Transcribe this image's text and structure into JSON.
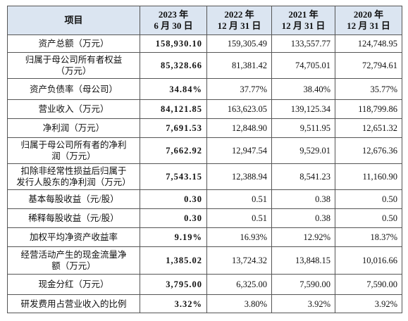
{
  "table": {
    "header": [
      [
        "项目"
      ],
      [
        "2023 年",
        "6 月 30 日"
      ],
      [
        "2022 年",
        "12 月 31 日"
      ],
      [
        "2021 年",
        "12 月 31 日"
      ],
      [
        "2020 年",
        "12 月 31 日"
      ]
    ],
    "rows": [
      [
        [
          "资产总额（万元）"
        ],
        "158,930.10",
        "159,305.49",
        "133,557.77",
        "124,748.95"
      ],
      [
        [
          "归属于母公司所有者权益",
          "（万元）"
        ],
        "85,328.66",
        "81,381.42",
        "74,705.01",
        "72,794.61"
      ],
      [
        [
          "资产负债率（母公司）"
        ],
        "34.84%",
        "37.77%",
        "38.40%",
        "35.77%"
      ],
      [
        [
          "营业收入（万元）"
        ],
        "84,121.85",
        "163,623.05",
        "139,125.34",
        "118,799.86"
      ],
      [
        [
          "净利润（万元）"
        ],
        "7,691.53",
        "12,848.90",
        "9,511.95",
        "12,651.32"
      ],
      [
        [
          "归属于母公司所有者的净利",
          "润（万元）"
        ],
        "7,662.92",
        "12,947.54",
        "9,529.01",
        "12,676.36"
      ],
      [
        [
          "扣除非经常性损益后归属于",
          "发行人股东的净利润（万元）"
        ],
        "7,543.15",
        "12,388.94",
        "8,541.23",
        "11,160.90"
      ],
      [
        [
          "基本每股收益（元/股）"
        ],
        "0.30",
        "0.51",
        "0.38",
        "0.50"
      ],
      [
        [
          "稀释每股收益（元/股）"
        ],
        "0.30",
        "0.51",
        "0.38",
        "0.50"
      ],
      [
        [
          "加权平均净资产收益率"
        ],
        "9.19%",
        "16.93%",
        "12.92%",
        "18.37%"
      ],
      [
        [
          "经营活动产生的现金流量净",
          "额（万元）"
        ],
        "1,385.02",
        "13,724.32",
        "13,848.15",
        "10,016.66"
      ],
      [
        [
          "现金分红（万元）"
        ],
        "3,795.00",
        "6,325.00",
        "7,590.00",
        "7,590.00"
      ],
      [
        [
          "研发费用占营业收入的比例"
        ],
        "3.32%",
        "3.80%",
        "3.92%",
        "3.92%"
      ]
    ]
  }
}
